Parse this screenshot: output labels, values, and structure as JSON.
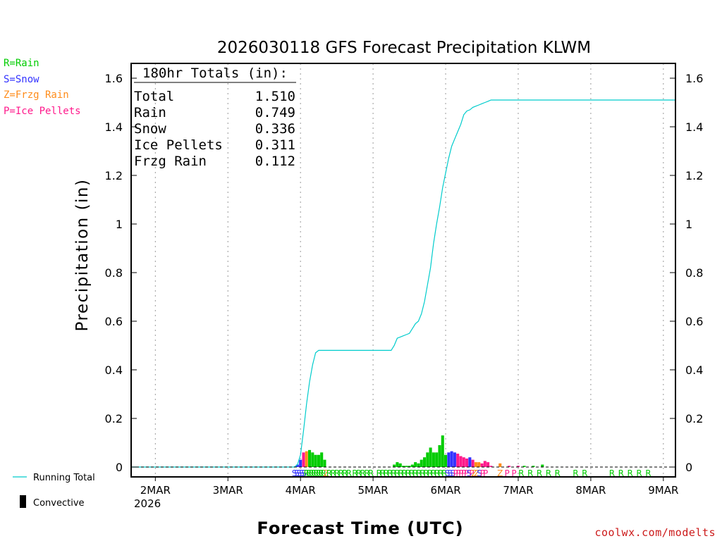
{
  "chart_data": {
    "type": "bar+line",
    "title": "2026030118 GFS Forecast Precipitation KLWM",
    "xlabel": "Forecast Time (UTC)",
    "ylabel": "Precipitation (in)",
    "ylim": [
      0,
      1.65
    ],
    "y_ticks": [
      "0",
      "0.2",
      "0.4",
      "0.6",
      "0.8",
      "1",
      "1.2",
      "1.4",
      "1.6"
    ],
    "y_tick_values": [
      0,
      0.2,
      0.4,
      0.6,
      0.8,
      1.0,
      1.2,
      1.4,
      1.6
    ],
    "x_range_hours": [
      -2,
      178
    ],
    "x_ticks": [
      {
        "label": "2MAR",
        "hour": 6
      },
      {
        "label": "3MAR",
        "hour": 30
      },
      {
        "label": "4MAR",
        "hour": 54
      },
      {
        "label": "5MAR",
        "hour": 78
      },
      {
        "label": "6MAR",
        "hour": 102
      },
      {
        "label": "7MAR",
        "hour": 126
      },
      {
        "label": "8MAR",
        "hour": 150
      },
      {
        "label": "9MAR",
        "hour": 174
      }
    ],
    "x_year_label": "2026",
    "legend": [
      {
        "label": "R=Rain",
        "color": "#00cc00"
      },
      {
        "label": "S=Snow",
        "color": "#3333ff"
      },
      {
        "label": "Z=Frzg Rain",
        "color": "#ff8c1a"
      },
      {
        "label": "P=Ice Pellets",
        "color": "#ff1a8c"
      }
    ],
    "series_legend": {
      "running_total": "Running Total",
      "convective": "Convective"
    },
    "colors": {
      "running_total": "#00cccc",
      "rain": "#00cc00",
      "snow": "#3333ff",
      "frzg_rain": "#ff8c1a",
      "ice_pellets": "#ff1a8c",
      "convective": "#000000"
    },
    "totals": {
      "header": "180hr Totals (in):",
      "rows": [
        {
          "label": "Total",
          "value": "1.510"
        },
        {
          "label": "Rain",
          "value": "0.749"
        },
        {
          "label": "Snow",
          "value": "0.336"
        },
        {
          "label": "Ice Pellets",
          "value": "0.311"
        },
        {
          "label": "Frzg Rain",
          "value": "0.112"
        }
      ]
    },
    "running_total": [
      [
        -2,
        0
      ],
      [
        52,
        0
      ],
      [
        53,
        0.01
      ],
      [
        54,
        0.05
      ],
      [
        55,
        0.15
      ],
      [
        56,
        0.26
      ],
      [
        57,
        0.35
      ],
      [
        58,
        0.42
      ],
      [
        59,
        0.47
      ],
      [
        60,
        0.48
      ],
      [
        80,
        0.48
      ],
      [
        84,
        0.48
      ],
      [
        85,
        0.5
      ],
      [
        86,
        0.53
      ],
      [
        87,
        0.535
      ],
      [
        88,
        0.54
      ],
      [
        89,
        0.545
      ],
      [
        90,
        0.55
      ],
      [
        91,
        0.57
      ],
      [
        92,
        0.59
      ],
      [
        93,
        0.6
      ],
      [
        94,
        0.63
      ],
      [
        95,
        0.68
      ],
      [
        96,
        0.75
      ],
      [
        97,
        0.82
      ],
      [
        97.5,
        0.87
      ],
      [
        98,
        0.92
      ],
      [
        99,
        1.0
      ],
      [
        100,
        1.07
      ],
      [
        101,
        1.15
      ],
      [
        102,
        1.21
      ],
      [
        103,
        1.27
      ],
      [
        104,
        1.32
      ],
      [
        105,
        1.35
      ],
      [
        106,
        1.38
      ],
      [
        107,
        1.41
      ],
      [
        108,
        1.45
      ],
      [
        109,
        1.465
      ],
      [
        110,
        1.47
      ],
      [
        111,
        1.48
      ],
      [
        112,
        1.485
      ],
      [
        113,
        1.49
      ],
      [
        114,
        1.495
      ],
      [
        115,
        1.5
      ],
      [
        116,
        1.505
      ],
      [
        117,
        1.51
      ],
      [
        130,
        1.51
      ],
      [
        178,
        1.51
      ]
    ],
    "bars": [
      {
        "h": 53,
        "v": 0.01,
        "t": "snow"
      },
      {
        "h": 54,
        "v": 0.03,
        "t": "snow"
      },
      {
        "h": 55,
        "v": 0.06,
        "t": "ice_pellets"
      },
      {
        "h": 56,
        "v": 0.065,
        "t": "frzg_rain"
      },
      {
        "h": 57,
        "v": 0.07,
        "t": "rain"
      },
      {
        "h": 58,
        "v": 0.06,
        "t": "rain"
      },
      {
        "h": 59,
        "v": 0.05,
        "t": "rain"
      },
      {
        "h": 60,
        "v": 0.05,
        "t": "rain"
      },
      {
        "h": 61,
        "v": 0.06,
        "t": "rain"
      },
      {
        "h": 62,
        "v": 0.03,
        "t": "rain"
      },
      {
        "h": 85,
        "v": 0.01,
        "t": "rain"
      },
      {
        "h": 86,
        "v": 0.02,
        "t": "rain"
      },
      {
        "h": 87,
        "v": 0.015,
        "t": "rain"
      },
      {
        "h": 88,
        "v": 0.005,
        "t": "rain"
      },
      {
        "h": 89,
        "v": 0.005,
        "t": "rain"
      },
      {
        "h": 90,
        "v": 0.005,
        "t": "rain"
      },
      {
        "h": 91,
        "v": 0.01,
        "t": "rain"
      },
      {
        "h": 92,
        "v": 0.02,
        "t": "rain"
      },
      {
        "h": 93,
        "v": 0.015,
        "t": "rain"
      },
      {
        "h": 94,
        "v": 0.03,
        "t": "rain"
      },
      {
        "h": 95,
        "v": 0.04,
        "t": "rain"
      },
      {
        "h": 96,
        "v": 0.06,
        "t": "rain"
      },
      {
        "h": 97,
        "v": 0.08,
        "t": "rain"
      },
      {
        "h": 98,
        "v": 0.06,
        "t": "rain"
      },
      {
        "h": 99,
        "v": 0.06,
        "t": "rain"
      },
      {
        "h": 100,
        "v": 0.09,
        "t": "rain"
      },
      {
        "h": 101,
        "v": 0.13,
        "t": "rain"
      },
      {
        "h": 102,
        "v": 0.05,
        "t": "rain"
      },
      {
        "h": 103,
        "v": 0.06,
        "t": "snow"
      },
      {
        "h": 104,
        "v": 0.065,
        "t": "snow"
      },
      {
        "h": 105,
        "v": 0.06,
        "t": "snow"
      },
      {
        "h": 106,
        "v": 0.055,
        "t": "ice_pellets"
      },
      {
        "h": 107,
        "v": 0.045,
        "t": "ice_pellets"
      },
      {
        "h": 108,
        "v": 0.04,
        "t": "ice_pellets"
      },
      {
        "h": 109,
        "v": 0.035,
        "t": "ice_pellets"
      },
      {
        "h": 110,
        "v": 0.04,
        "t": "snow"
      },
      {
        "h": 111,
        "v": 0.03,
        "t": "ice_pellets"
      },
      {
        "h": 112,
        "v": 0.02,
        "t": "frzg_rain"
      },
      {
        "h": 113,
        "v": 0.02,
        "t": "frzg_rain"
      },
      {
        "h": 114,
        "v": 0.015,
        "t": "ice_pellets"
      },
      {
        "h": 115,
        "v": 0.025,
        "t": "ice_pellets"
      },
      {
        "h": 116,
        "v": 0.02,
        "t": "ice_pellets"
      },
      {
        "h": 117,
        "v": 0.005,
        "t": "ice_pellets"
      },
      {
        "h": 120,
        "v": 0.015,
        "t": "frzg_rain"
      },
      {
        "h": 123,
        "v": 0.005,
        "t": "ice_pellets"
      },
      {
        "h": 126,
        "v": 0.005,
        "t": "ice_pellets"
      },
      {
        "h": 128,
        "v": 0.005,
        "t": "rain"
      },
      {
        "h": 131,
        "v": 0.005,
        "t": "rain"
      },
      {
        "h": 134,
        "v": 0.01,
        "t": "rain"
      }
    ],
    "type_markers": [
      {
        "h": 52,
        "s": "S"
      },
      {
        "h": 52.8,
        "s": "S"
      },
      {
        "h": 53.6,
        "s": "S"
      },
      {
        "h": 54.4,
        "s": "S"
      },
      {
        "h": 55.2,
        "s": "S"
      },
      {
        "h": 56,
        "s": "R"
      },
      {
        "h": 56.8,
        "s": "R"
      },
      {
        "h": 57.6,
        "s": "R"
      },
      {
        "h": 58.4,
        "s": "R"
      },
      {
        "h": 59.2,
        "s": "R"
      },
      {
        "h": 60,
        "s": "R"
      },
      {
        "h": 60.8,
        "s": "R"
      },
      {
        "h": 61.6,
        "s": "R"
      },
      {
        "h": 62.5,
        "s": "Z"
      },
      {
        "h": 63.5,
        "s": "R"
      },
      {
        "h": 64.8,
        "s": "R"
      },
      {
        "h": 66.1,
        "s": "R"
      },
      {
        "h": 67.4,
        "s": "R"
      },
      {
        "h": 68.7,
        "s": "R"
      },
      {
        "h": 70,
        "s": "R"
      },
      {
        "h": 72,
        "s": "R"
      },
      {
        "h": 73.3,
        "s": "R"
      },
      {
        "h": 74.6,
        "s": "R"
      },
      {
        "h": 76,
        "s": "R"
      },
      {
        "h": 77.3,
        "s": "R"
      },
      {
        "h": 80,
        "s": "R"
      },
      {
        "h": 81.2,
        "s": "R"
      },
      {
        "h": 82.4,
        "s": "R"
      },
      {
        "h": 83.6,
        "s": "R"
      },
      {
        "h": 84.8,
        "s": "R"
      },
      {
        "h": 86,
        "s": "R"
      },
      {
        "h": 87.2,
        "s": "R"
      },
      {
        "h": 88.4,
        "s": "R"
      },
      {
        "h": 89.6,
        "s": "R"
      },
      {
        "h": 90.8,
        "s": "R"
      },
      {
        "h": 92,
        "s": "R"
      },
      {
        "h": 93.2,
        "s": "R"
      },
      {
        "h": 94.4,
        "s": "R"
      },
      {
        "h": 95.6,
        "s": "R"
      },
      {
        "h": 96.8,
        "s": "R"
      },
      {
        "h": 98,
        "s": "R"
      },
      {
        "h": 99.2,
        "s": "R"
      },
      {
        "h": 100.4,
        "s": "R"
      },
      {
        "h": 101.6,
        "s": "R"
      },
      {
        "h": 102.6,
        "s": "S"
      },
      {
        "h": 103.5,
        "s": "S"
      },
      {
        "h": 104.4,
        "s": "S"
      },
      {
        "h": 105.3,
        "s": "P"
      },
      {
        "h": 106.2,
        "s": "P"
      },
      {
        "h": 107.1,
        "s": "P"
      },
      {
        "h": 108,
        "s": "P"
      },
      {
        "h": 108.9,
        "s": "P"
      },
      {
        "h": 109.8,
        "s": "S"
      },
      {
        "h": 110.6,
        "s": "P"
      },
      {
        "h": 111.4,
        "s": "Z"
      },
      {
        "h": 112.3,
        "s": "Z"
      },
      {
        "h": 113.2,
        "s": "S"
      },
      {
        "h": 114.2,
        "s": "P"
      },
      {
        "h": 115.2,
        "s": "P"
      },
      {
        "h": 120,
        "s": "Z"
      },
      {
        "h": 122.3,
        "s": "P"
      },
      {
        "h": 124.6,
        "s": "P"
      },
      {
        "h": 127,
        "s": "R"
      },
      {
        "h": 130,
        "s": "R"
      },
      {
        "h": 133,
        "s": "R"
      },
      {
        "h": 136,
        "s": "R"
      },
      {
        "h": 139,
        "s": "R"
      },
      {
        "h": 145,
        "s": "R"
      },
      {
        "h": 148,
        "s": "R"
      },
      {
        "h": 157,
        "s": "R"
      },
      {
        "h": 160,
        "s": "R"
      },
      {
        "h": 163,
        "s": "R"
      },
      {
        "h": 166,
        "s": "R"
      },
      {
        "h": 169,
        "s": "R"
      }
    ],
    "credit": "coolwx.com/modelts"
  }
}
